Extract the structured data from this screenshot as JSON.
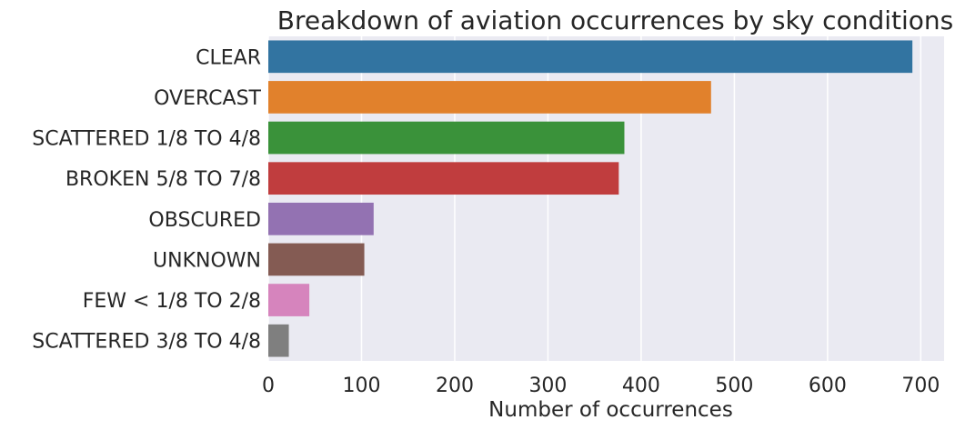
{
  "chart_data": {
    "type": "bar",
    "orientation": "horizontal",
    "title": "Breakdown of aviation occurrences by sky conditions",
    "xlabel": "Number of occurrences",
    "ylabel": "",
    "xlim": [
      0,
      725
    ],
    "xticks": [
      0,
      100,
      200,
      300,
      400,
      500,
      600,
      700
    ],
    "grid": true,
    "categories": [
      "CLEAR",
      "OVERCAST",
      "SCATTERED 1/8 TO 4/8",
      "BROKEN 5/8 TO 7/8",
      "OBSCURED",
      "UNKNOWN",
      "FEW < 1/8 TO 2/8",
      "SCATTERED 3/8 TO 4/8"
    ],
    "values": [
      691,
      475,
      382,
      376,
      113,
      103,
      44,
      22
    ],
    "colors": [
      "#3274a1",
      "#e1812c",
      "#3a923a",
      "#c03d3e",
      "#9372b2",
      "#845b53",
      "#d684bd",
      "#7f7f7f"
    ],
    "background_color": "#eaeaf2"
  }
}
